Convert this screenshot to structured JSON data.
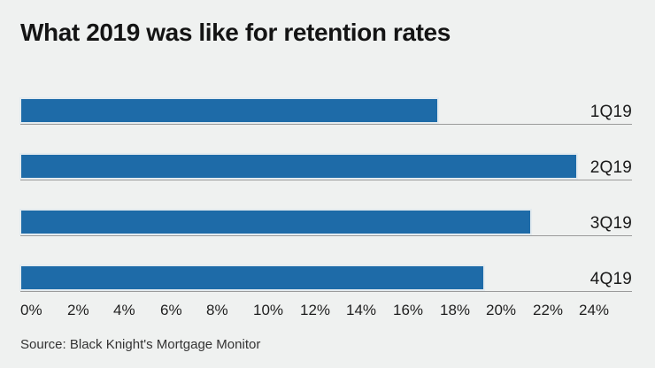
{
  "chart_data": {
    "type": "bar",
    "orientation": "horizontal",
    "title": "What 2019 was like for retention rates",
    "categories": [
      "1Q19",
      "2Q19",
      "3Q19",
      "4Q19"
    ],
    "values": [
      18,
      24,
      22,
      20
    ],
    "value_unit": "%",
    "xlabel": "",
    "ylabel": "",
    "xlim": [
      0,
      24
    ],
    "tick_step": 2,
    "tick_labels": [
      "0%",
      "2%",
      "4%",
      "6%",
      "8%",
      "10%",
      "12%",
      "14%",
      "16%",
      "18%",
      "20%",
      "22%",
      "24%"
    ],
    "grid": "off",
    "legend": "none",
    "row_baselines": true,
    "bar_color": "#1e6ba8",
    "background_color": "#eff1f0",
    "baseline_color": "#9b9b9b",
    "source": "Source: Black Knight's Mortgage Monitor"
  }
}
